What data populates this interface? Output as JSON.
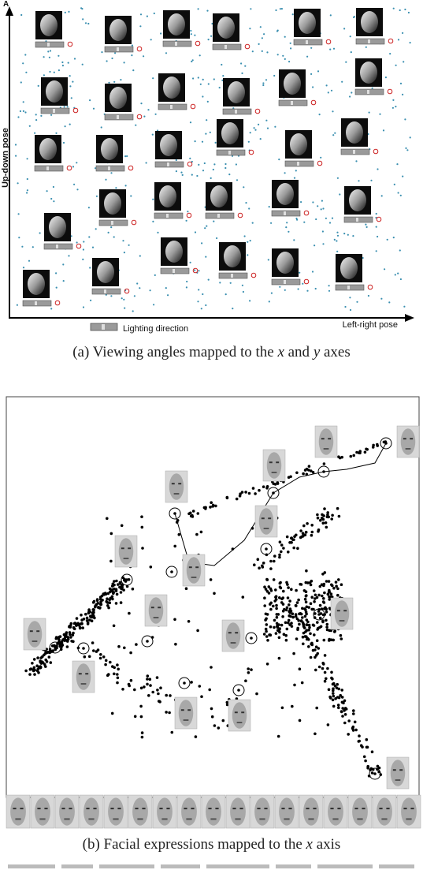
{
  "panel_a": {
    "letter": "A",
    "y_axis_label": "Up-down pose",
    "x_axis_label": "Left-right pose",
    "legend_label": "Lighting direction",
    "caption_prefix": "(a) Viewing angles mapped to the ",
    "caption_x": "x",
    "caption_and": " and ",
    "caption_y": "y",
    "caption_suffix": " axes",
    "colors": {
      "dots": "#3a8fb0",
      "marker": "#cc2222",
      "bar": "#9a9a9a"
    }
  },
  "panel_b": {
    "caption_prefix": "(b) Facial expressions mapped to the ",
    "caption_x": "x",
    "caption_suffix": " axis",
    "colors": {
      "dots": "#000000",
      "frame": "#444444"
    }
  }
}
